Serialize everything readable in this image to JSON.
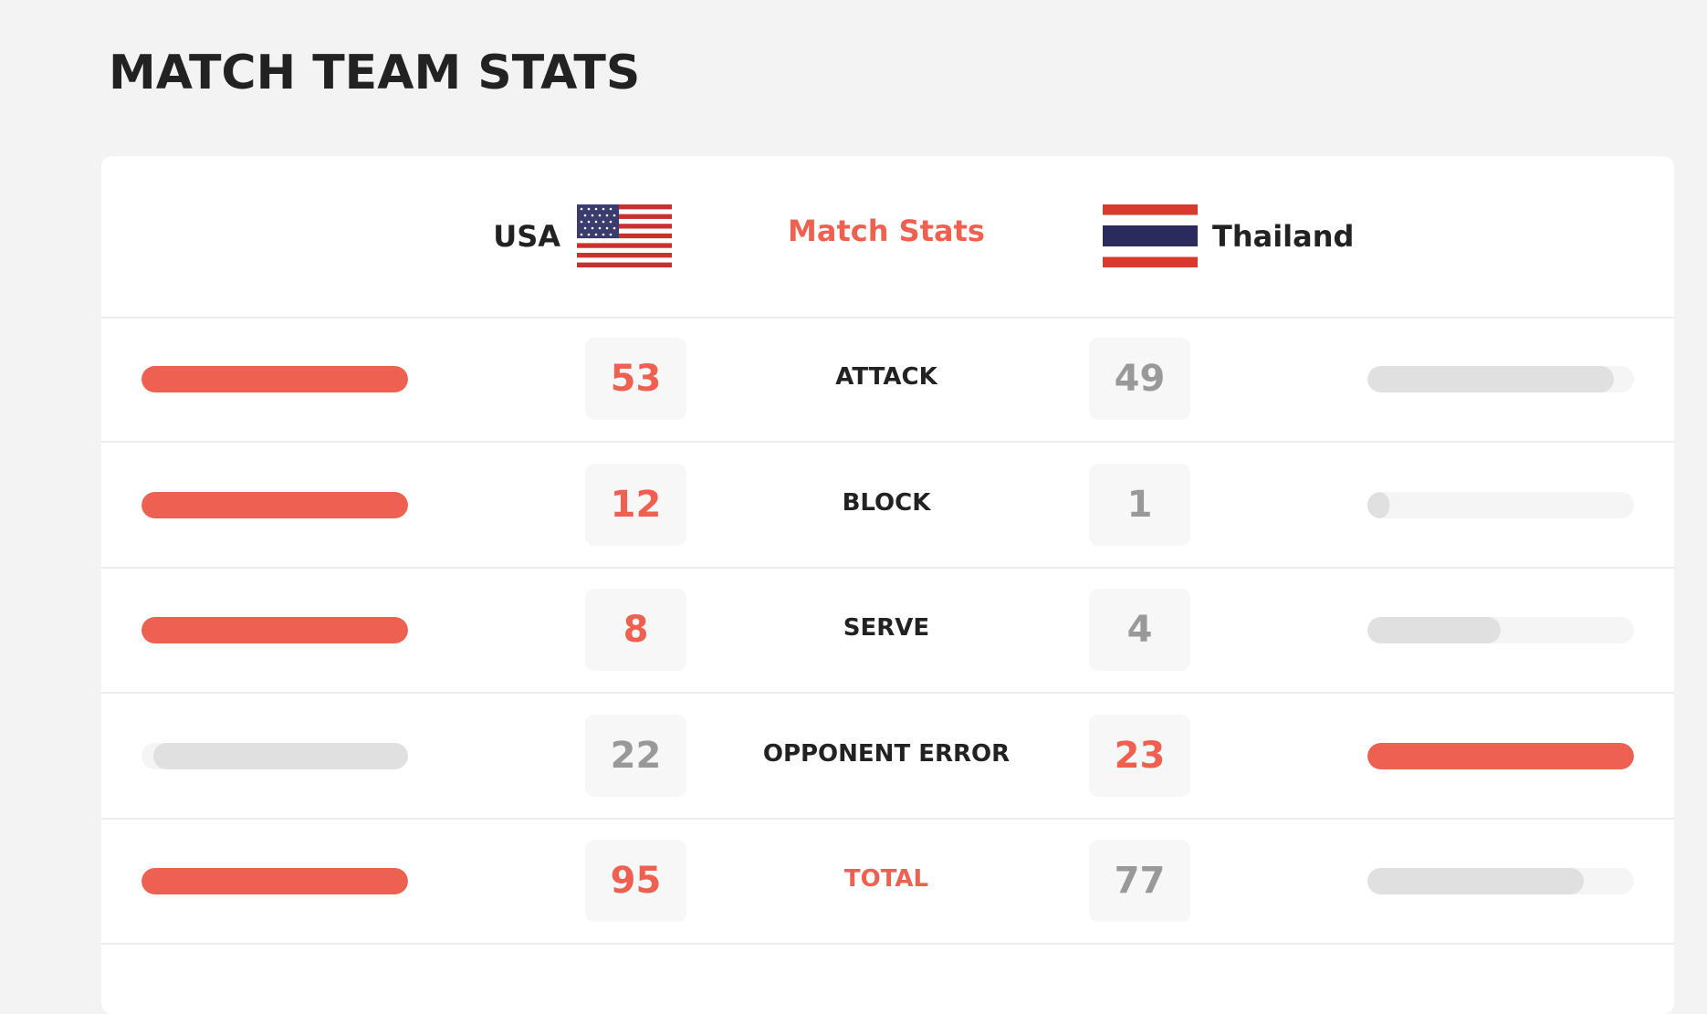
{
  "title": "MATCH TEAM STATS",
  "header": {
    "team1": "USA",
    "center": "Match Stats",
    "team2": "Thailand"
  },
  "rows": [
    {
      "label": "ATTACK",
      "team1": 53,
      "team2": 49
    },
    {
      "label": "BLOCK",
      "team1": 12,
      "team2": 1
    },
    {
      "label": "SERVE",
      "team1": 8,
      "team2": 4
    },
    {
      "label": "OPPONENT ERROR",
      "team1": 22,
      "team2": 23
    },
    {
      "label": "TOTAL",
      "team1": 95,
      "team2": 77
    }
  ]
}
